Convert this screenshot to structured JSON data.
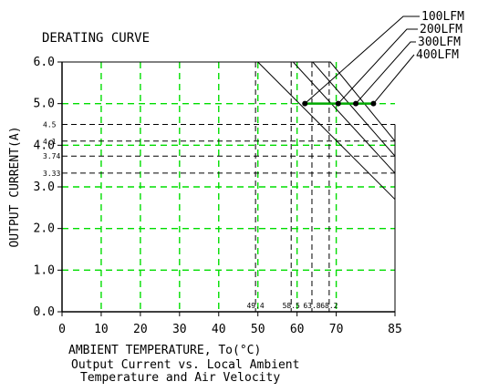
{
  "chart_data": {
    "type": "line",
    "title": "DERATING CURVE",
    "xlabel": "AMBIENT TEMPERATURE, To(°C)",
    "ylabel": "OUTPUT CURRENT(A)",
    "caption_lines": [
      "Output Current vs. Local Ambient",
      "Temperature and Air Velocity"
    ],
    "xlim": [
      0,
      85
    ],
    "ylim": [
      0,
      6
    ],
    "x_ticks": [
      {
        "value": 0,
        "label": "0"
      },
      {
        "value": 10,
        "label": "10"
      },
      {
        "value": 20,
        "label": "20"
      },
      {
        "value": 30,
        "label": "30"
      },
      {
        "value": 40,
        "label": "40"
      },
      {
        "value": 50,
        "label": "50"
      },
      {
        "value": 60,
        "label": "60"
      },
      {
        "value": 70,
        "label": "70"
      },
      {
        "value": 85,
        "label": "85"
      }
    ],
    "y_ticks": [
      {
        "value": 0,
        "label": "0.0"
      },
      {
        "value": 1,
        "label": "1.0"
      },
      {
        "value": 2,
        "label": "2.0"
      },
      {
        "value": 3,
        "label": "3.0"
      },
      {
        "value": 4,
        "label": "4.0"
      },
      {
        "value": 5,
        "label": "5.0"
      },
      {
        "value": 6,
        "label": "6.0"
      }
    ],
    "grid": true,
    "reference_y": [
      {
        "value": 4.5,
        "label": "4.5"
      },
      {
        "value": 4.1,
        "label": "4.1"
      },
      {
        "value": 3.74,
        "label": "3.74"
      },
      {
        "value": 3.33,
        "label": "3.33"
      }
    ],
    "reference_x": [
      {
        "value": 49.4,
        "label": "49.4"
      },
      {
        "value": 58.5,
        "label": "58.5"
      },
      {
        "value": 63.8,
        "label": "63.8"
      },
      {
        "value": 68.2,
        "label": "68.2"
      }
    ],
    "series": [
      {
        "name": "100LFM",
        "x": [
          0,
          50,
          85
        ],
        "y": [
          6,
          6,
          2.7
        ]
      },
      {
        "name": "200LFM",
        "x": [
          0,
          59,
          85
        ],
        "y": [
          6,
          6,
          3.33
        ]
      },
      {
        "name": "300LFM",
        "x": [
          0,
          64,
          85
        ],
        "y": [
          6,
          6,
          3.74
        ]
      },
      {
        "name": "400LFM",
        "x": [
          0,
          68.5,
          85
        ],
        "y": [
          6,
          6,
          4.1
        ]
      }
    ],
    "operating_line": {
      "x": [
        62,
        80
      ],
      "y": [
        5,
        5
      ]
    },
    "marker_points": [
      {
        "x": 62,
        "y": 5
      },
      {
        "x": 70.5,
        "y": 5
      },
      {
        "x": 75,
        "y": 5
      },
      {
        "x": 79.5,
        "y": 5
      }
    ],
    "colors": {
      "grid": "#00dd00",
      "axis": "#000000",
      "curve": "#000000",
      "operating_line": "#00aa00"
    }
  }
}
